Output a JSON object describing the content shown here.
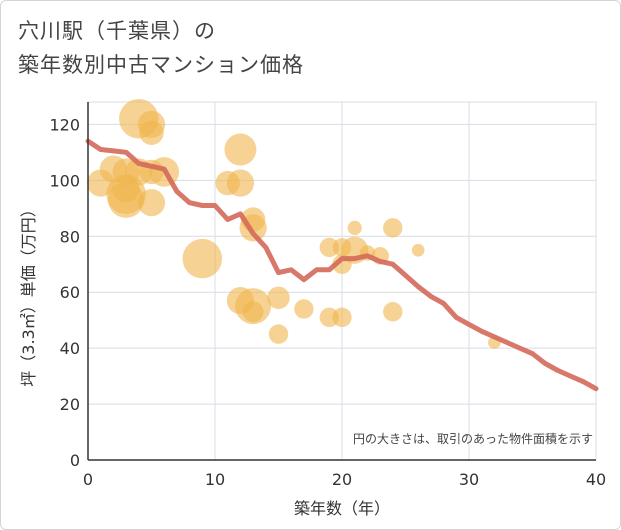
{
  "chart_data": {
    "type": "scatter",
    "title_line1": "穴川駅（千葉県）の",
    "title_line2": "築年数別中古マンション価格",
    "xlabel": "築年数（年）",
    "ylabel": "坪（3.3㎡）単価（万円）",
    "xlim": [
      0,
      40
    ],
    "ylim": [
      0,
      128
    ],
    "xticks": [
      0,
      10,
      20,
      30,
      40
    ],
    "yticks": [
      0,
      20,
      40,
      60,
      80,
      100,
      120
    ],
    "grid": true,
    "note": "円の大きさは、取引のあった物件面積を示す",
    "colors": {
      "bubble": "#f0b54f",
      "line": "#d4695a",
      "grid": "#d8dde6"
    },
    "bubbles": [
      {
        "x": 1,
        "y": 99,
        "size": 2
      },
      {
        "x": 2,
        "y": 104,
        "size": 2
      },
      {
        "x": 3,
        "y": 95,
        "size": 5
      },
      {
        "x": 3,
        "y": 93,
        "size": 4
      },
      {
        "x": 3,
        "y": 97,
        "size": 2
      },
      {
        "x": 3,
        "y": 103,
        "size": 2
      },
      {
        "x": 4,
        "y": 122,
        "size": 5
      },
      {
        "x": 4,
        "y": 103,
        "size": 2
      },
      {
        "x": 5,
        "y": 120,
        "size": 2
      },
      {
        "x": 5,
        "y": 117,
        "size": 1.5
      },
      {
        "x": 5,
        "y": 103,
        "size": 1.5
      },
      {
        "x": 5,
        "y": 92,
        "size": 2
      },
      {
        "x": 6,
        "y": 103,
        "size": 2.5
      },
      {
        "x": 9,
        "y": 72,
        "size": 5
      },
      {
        "x": 11,
        "y": 99,
        "size": 1.5
      },
      {
        "x": 12,
        "y": 111,
        "size": 3
      },
      {
        "x": 12,
        "y": 99,
        "size": 2
      },
      {
        "x": 12,
        "y": 57,
        "size": 2
      },
      {
        "x": 13,
        "y": 86,
        "size": 1.5
      },
      {
        "x": 13,
        "y": 83,
        "size": 2
      },
      {
        "x": 13,
        "y": 55,
        "size": 4
      },
      {
        "x": 13,
        "y": 53,
        "size": 1
      },
      {
        "x": 15,
        "y": 58,
        "size": 1.2
      },
      {
        "x": 15,
        "y": 45,
        "size": 0.8
      },
      {
        "x": 17,
        "y": 54,
        "size": 0.8
      },
      {
        "x": 19,
        "y": 76,
        "size": 0.8
      },
      {
        "x": 19,
        "y": 51,
        "size": 0.8
      },
      {
        "x": 20,
        "y": 76,
        "size": 0.7
      },
      {
        "x": 20,
        "y": 70,
        "size": 0.8
      },
      {
        "x": 20,
        "y": 51,
        "size": 0.8
      },
      {
        "x": 21,
        "y": 83,
        "size": 0.3
      },
      {
        "x": 21,
        "y": 75,
        "size": 2
      },
      {
        "x": 22,
        "y": 74,
        "size": 0.4
      },
      {
        "x": 23,
        "y": 73,
        "size": 0.6
      },
      {
        "x": 24,
        "y": 83,
        "size": 0.8
      },
      {
        "x": 24,
        "y": 53,
        "size": 0.8
      },
      {
        "x": 26,
        "y": 75,
        "size": 0.2
      },
      {
        "x": 32,
        "y": 42,
        "size": 0.2
      }
    ],
    "trend": {
      "x": [
        0,
        1,
        2,
        3,
        4,
        5,
        6,
        7,
        8,
        9,
        10,
        11,
        12,
        13,
        14,
        15,
        16,
        17,
        18,
        19,
        20,
        21,
        22,
        23,
        24,
        25,
        26,
        27,
        28,
        29,
        30,
        31,
        32,
        33,
        34,
        35,
        36,
        37,
        38,
        39,
        40
      ],
      "y": [
        114,
        111,
        110.5,
        110,
        106,
        105,
        104,
        96,
        92,
        91,
        91,
        86,
        88,
        81,
        76,
        67,
        68,
        64.5,
        68,
        68,
        72,
        72,
        73,
        71,
        70,
        66,
        62,
        58.5,
        56,
        51,
        48.5,
        46,
        44,
        42,
        40,
        38,
        34.5,
        32,
        30,
        28,
        25.5
      ]
    }
  }
}
